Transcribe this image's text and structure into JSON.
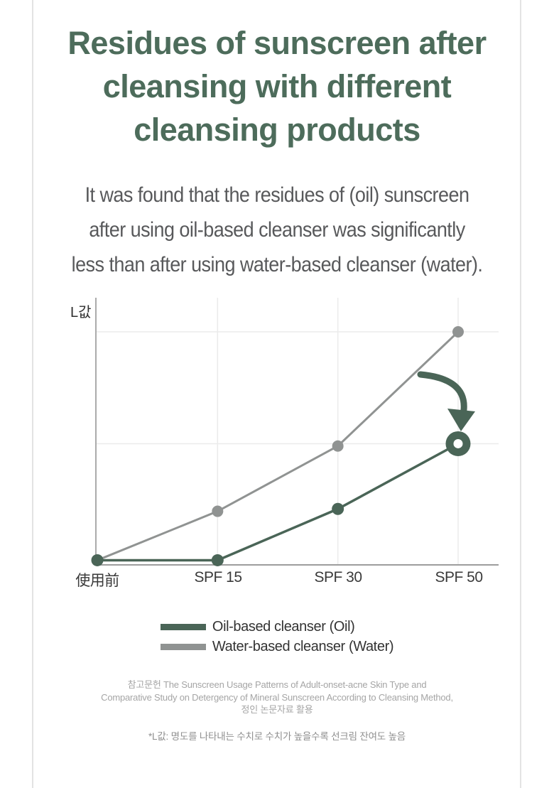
{
  "page": {
    "title_lines": [
      "Residues of sunscreen after",
      "cleansing with different",
      "cleansing products"
    ],
    "subtitle_lines": [
      "It was found that the residues of (oil) sunscreen",
      "after using oil-based cleanser was significantly",
      "less than after using water-based cleanser (water)."
    ]
  },
  "chart_data": {
    "type": "line",
    "title": "",
    "ylabel": "L값",
    "xlabel": "",
    "categories": [
      "使用前",
      "SPF 15",
      "SPF 30",
      "SPF 50"
    ],
    "series": [
      {
        "name": "Oil-based cleanser (Oil)",
        "color": "#4a6557",
        "values": [
          2,
          2,
          24,
          52
        ],
        "marker": "dot",
        "endpoint_marker": "donut-highlight"
      },
      {
        "name": "Water-based cleanser (Water)",
        "color": "#909392",
        "values": [
          2,
          23,
          51,
          100
        ],
        "marker": "dot"
      }
    ],
    "ylim": [
      0,
      110
    ],
    "y_ticks": [],
    "grid": {
      "horizontal_lines_at": [
        52,
        100
      ],
      "vertical_gridlines_at_categories": [
        "SPF 15",
        "SPF 30",
        "SPF 50"
      ]
    },
    "legend_position": "bottom-center",
    "annotations": [
      {
        "type": "curved-arrow",
        "points_to": "Oil-based cleanser value at SPF 50",
        "color": "#4a6557"
      }
    ],
    "value_note": "No numeric axis shown; values are relative L값 (brightness) estimates read from the plot"
  },
  "footer": {
    "reference_lines": [
      "참고문헌 The Sunscreen Usage Patterns of Adult-onset-acne Skin Type and",
      "Comparative Study on Detergency of Mineral Sunscreen According to Cleansing Method,",
      "정인 논문자료 활용"
    ],
    "note": "*L값: 명도를 나타내는 수치로 수치가 높을수록 선크림 잔여도 높음"
  },
  "colors": {
    "title_green": "#4d6c5b",
    "oil_line": "#4a6557",
    "water_line": "#909392",
    "axis": "#9d9d9d",
    "gridline": "#ebebeb",
    "page_border": "#e3e3e3",
    "subtitle_text": "#58595b",
    "footer_text": "#a5a5a5"
  }
}
